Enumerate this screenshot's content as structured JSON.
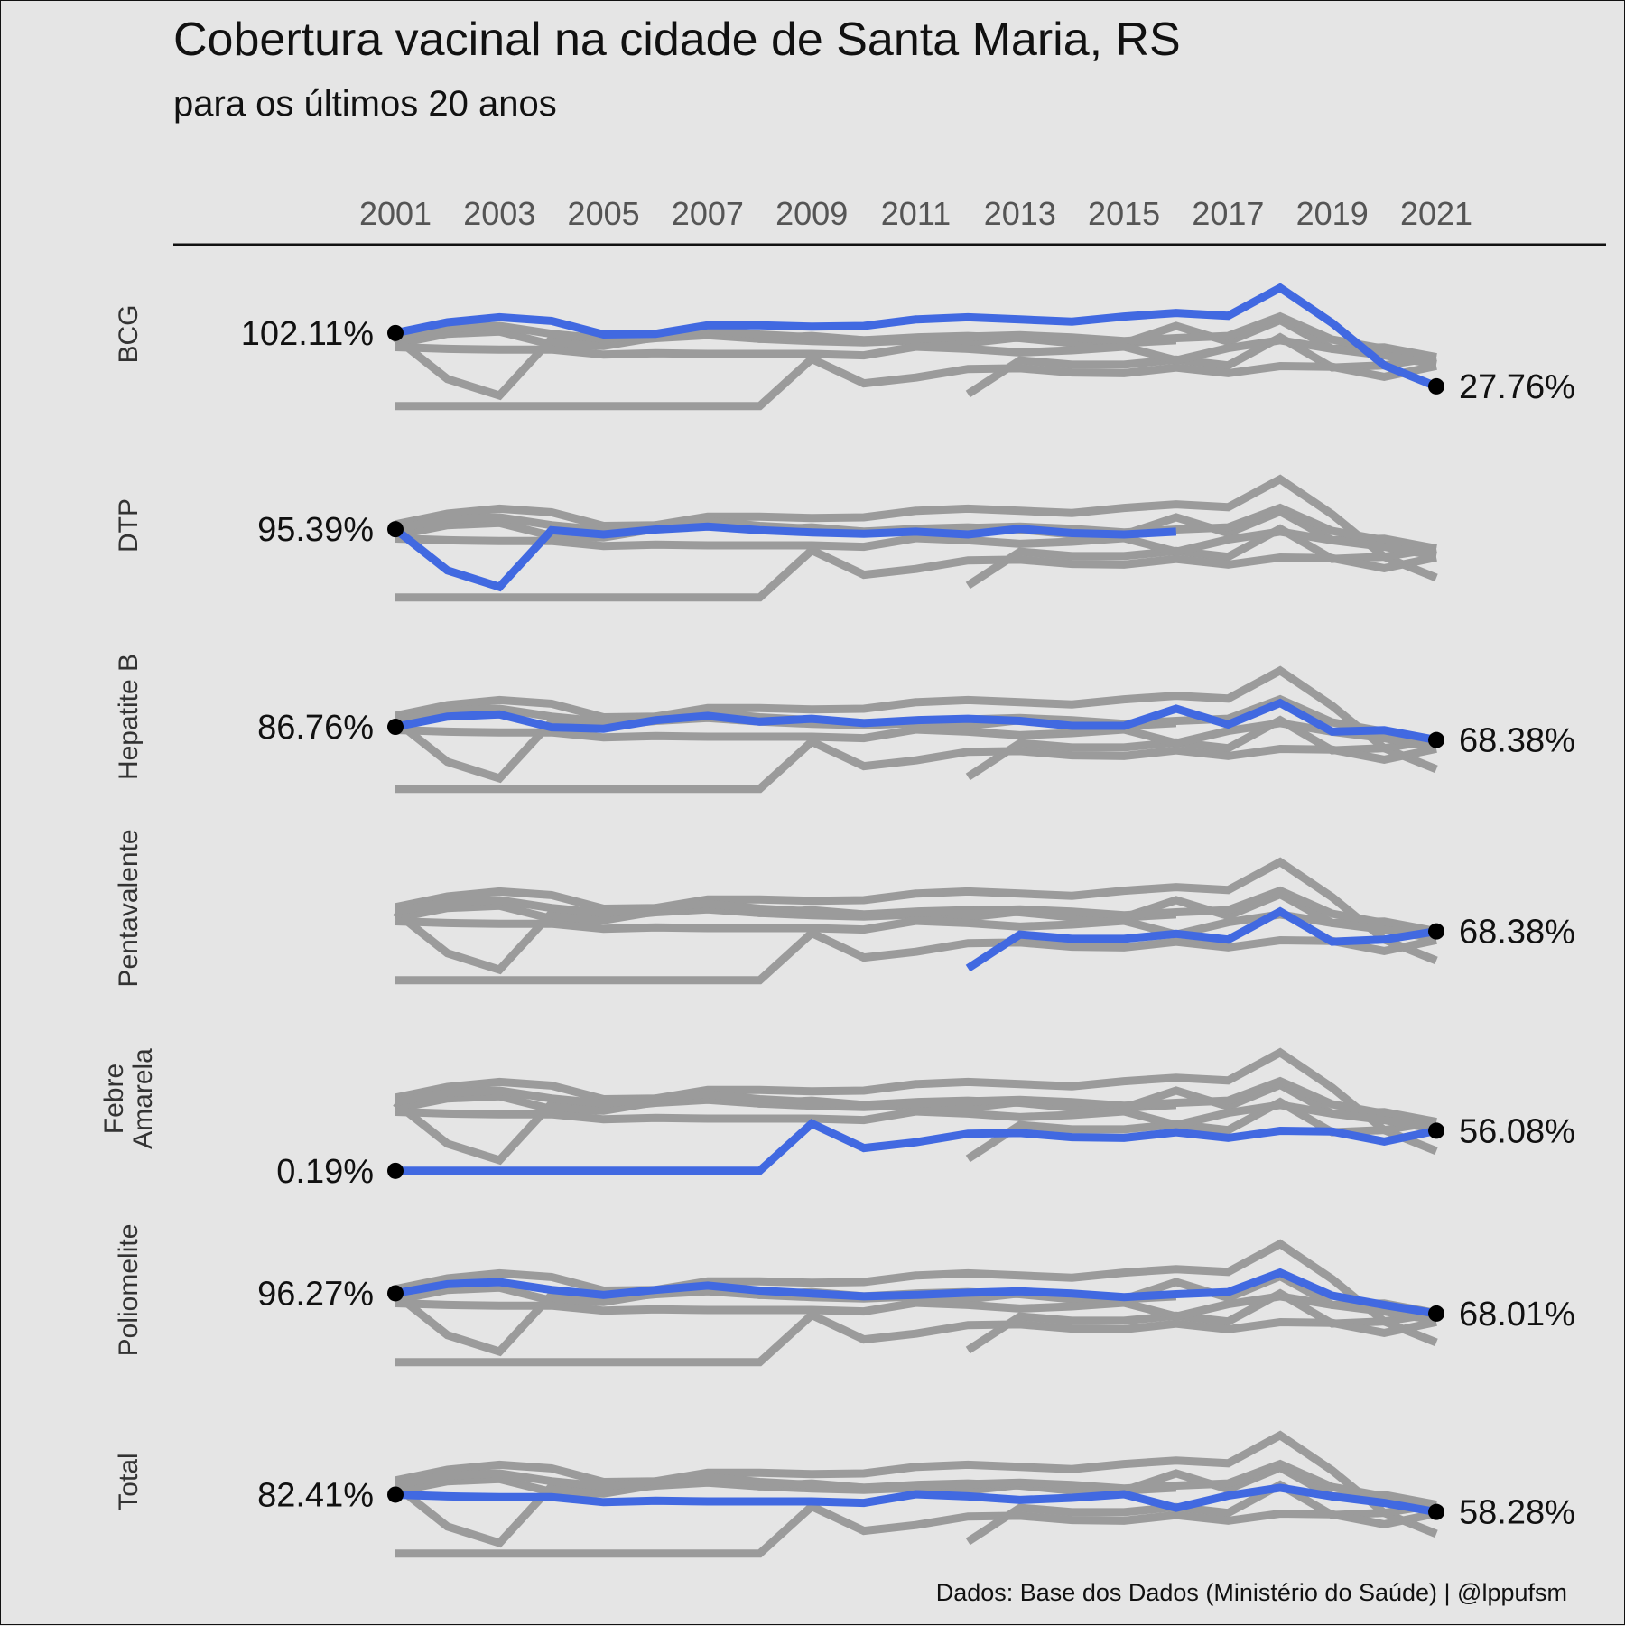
{
  "chart_data": {
    "type": "line",
    "title": "Cobertura vacinal na cidade de Santa Maria, RS",
    "subtitle": "para os últimos 20 anos",
    "caption": "Dados: Base dos Dados (Ministério do Saúde) | @lppufsm",
    "x": [
      2001,
      2002,
      2003,
      2004,
      2005,
      2006,
      2007,
      2008,
      2009,
      2010,
      2011,
      2012,
      2013,
      2014,
      2015,
      2016,
      2017,
      2018,
      2019,
      2020,
      2021
    ],
    "x_tick_labels": [
      "2001",
      "2003",
      "2005",
      "2007",
      "2009",
      "2011",
      "2013",
      "2015",
      "2017",
      "2019",
      "2021"
    ],
    "highlight_color": "#4169e1",
    "context_color": "#9b9b9b",
    "series": [
      {
        "name": "BCG",
        "label_lines": [
          "BCG"
        ],
        "start_label": "102.11%",
        "end_label": "27.76%",
        "values": [
          102.11,
          117,
          124,
          119,
          100,
          101,
          113,
          113,
          111,
          112,
          121,
          124,
          121,
          118,
          125,
          130,
          126,
          165,
          116,
          57,
          27.76
        ]
      },
      {
        "name": "DTP",
        "label_lines": [
          "DTP"
        ],
        "start_label": "95.39%",
        "end_label": "",
        "values": [
          95.39,
          38,
          15,
          94,
          88,
          95,
          99,
          94,
          91,
          89,
          92,
          88,
          96,
          90,
          88,
          92,
          null,
          null,
          null,
          null,
          null
        ]
      },
      {
        "name": "Hepatite B",
        "label_lines": [
          "Hepatite B"
        ],
        "start_label": "86.76%",
        "end_label": "68.38%",
        "values": [
          86.76,
          101,
          104,
          86,
          84,
          96,
          102,
          94,
          98,
          92,
          96,
          98,
          95,
          88,
          88,
          112,
          90,
          120,
          80,
          82,
          68.38
        ]
      },
      {
        "name": "Pentavalente",
        "label_lines": [
          "Pentavalente"
        ],
        "start_label": "",
        "end_label": "68.38%",
        "values": [
          null,
          null,
          null,
          null,
          null,
          null,
          null,
          null,
          null,
          null,
          null,
          17,
          64,
          58,
          58,
          65,
          57,
          96,
          54,
          57,
          68.38
        ]
      },
      {
        "name": "Febre Amarela",
        "label_lines": [
          "Febre",
          "Amarela"
        ],
        "start_label": "0.19%",
        "end_label": "56.08%",
        "values": [
          0.19,
          0.19,
          0.19,
          0.19,
          0.19,
          0.19,
          0.19,
          0.19,
          66,
          32,
          40,
          52,
          53,
          47,
          46,
          54,
          46,
          56,
          55,
          41,
          56.08
        ]
      },
      {
        "name": "Poliomelite",
        "label_lines": [
          "Poliomelite"
        ],
        "start_label": "96.27%",
        "end_label": "68.01%",
        "values": [
          96.27,
          109,
          112,
          101,
          94,
          101,
          107,
          100,
          96,
          92,
          94,
          97,
          99,
          96,
          91,
          95,
          98,
          125,
          93,
          80,
          68.01
        ]
      },
      {
        "name": "Total",
        "label_lines": [
          "Total"
        ],
        "start_label": "82.41%",
        "end_label": "58.28%",
        "values": [
          82.41,
          80,
          79,
          79,
          72,
          74,
          73,
          73,
          73,
          71,
          83,
          80,
          75,
          78,
          83,
          64,
          81,
          92,
          80,
          71,
          58.28
        ]
      }
    ]
  }
}
